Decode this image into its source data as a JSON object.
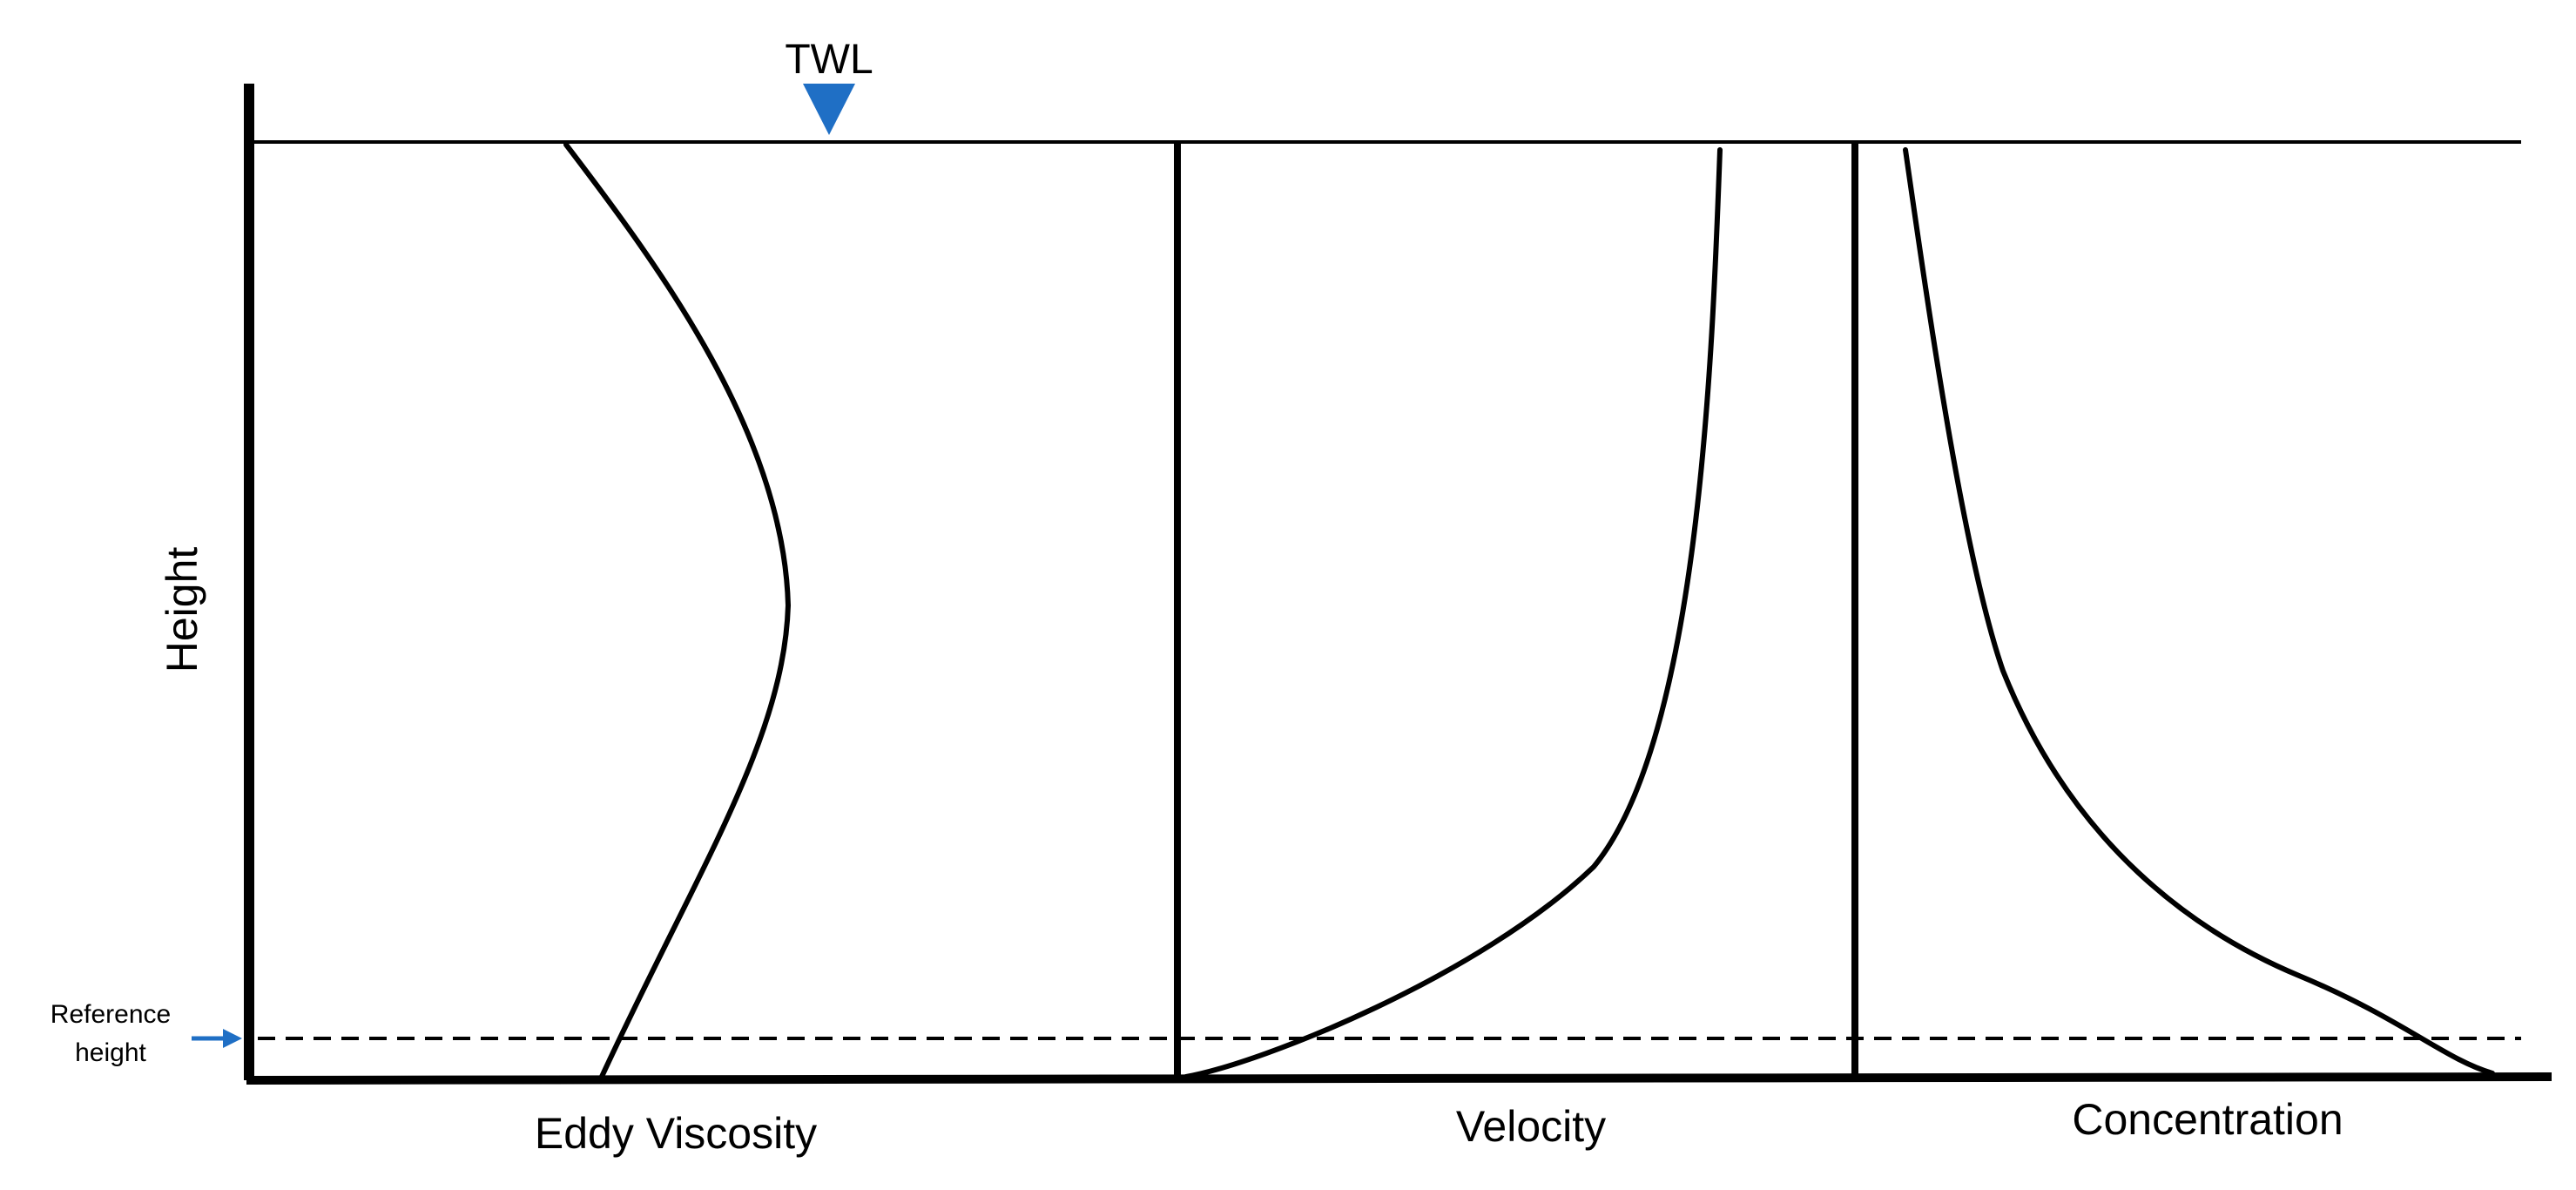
{
  "labels": {
    "twl": "TWL",
    "y_axis": "Height",
    "reference_line1": "Reference",
    "reference_line2": "height",
    "panel_eddy_viscosity": "Eddy Viscosity",
    "panel_velocity": "Velocity",
    "panel_concentration": "Concentration"
  },
  "colors": {
    "line": "#000000",
    "marker": "#1f6fc5",
    "background": "#ffffff"
  },
  "icons": {
    "water_level_marker": "downward-triangle",
    "reference_arrow": "right-arrow"
  }
}
